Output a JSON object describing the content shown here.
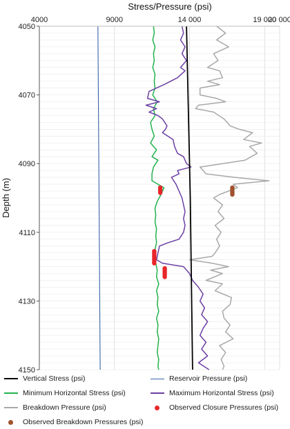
{
  "chart_data": {
    "type": "line",
    "title": "Stress/Pressure (psi)",
    "xlabel": "Stress/Pressure (psi)",
    "ylabel": "Depth (m)",
    "xlim": [
      4000,
      20000
    ],
    "ylim": [
      4150,
      4050
    ],
    "x_ticks": [
      "4000",
      "9000",
      "14 000",
      "19 000",
      "20 000"
    ],
    "y_ticks": [
      "4050",
      "4070",
      "4090",
      "4110",
      "4130",
      "4150"
    ],
    "grid": true,
    "legend_position": "bottom",
    "series": [
      {
        "name": "Vertical Stress (psi)",
        "color": "#000000",
        "style": "line",
        "points": [
          [
            13800,
            4050
          ],
          [
            14050,
            4100
          ],
          [
            14200,
            4150
          ]
        ]
      },
      {
        "name": "Reservoir Pressure (psi)",
        "color": "#3a62a6",
        "style": "line",
        "points": [
          [
            7900,
            4050
          ],
          [
            8050,
            4150
          ]
        ]
      },
      {
        "name": "Minimum Horizontal Stress (psi)",
        "color": "#22b24c",
        "style": "line",
        "points": [
          [
            11600,
            4050
          ],
          [
            11650,
            4052
          ],
          [
            11550,
            4054
          ],
          [
            11700,
            4056
          ],
          [
            11600,
            4058
          ],
          [
            11650,
            4060
          ],
          [
            11550,
            4062
          ],
          [
            11700,
            4064
          ],
          [
            11650,
            4066
          ],
          [
            11700,
            4068
          ],
          [
            11550,
            4070
          ],
          [
            11850,
            4072
          ],
          [
            11600,
            4074
          ],
          [
            11700,
            4076
          ],
          [
            11400,
            4078
          ],
          [
            11500,
            4080
          ],
          [
            11650,
            4082
          ],
          [
            11400,
            4084
          ],
          [
            11800,
            4086
          ],
          [
            11500,
            4088
          ],
          [
            11900,
            4089
          ],
          [
            11600,
            4091
          ],
          [
            11500,
            4093
          ],
          [
            11500,
            4095
          ],
          [
            12300,
            4097
          ],
          [
            12100,
            4099
          ],
          [
            11850,
            4101
          ],
          [
            11700,
            4103
          ],
          [
            11750,
            4105
          ],
          [
            11700,
            4107
          ],
          [
            11800,
            4109
          ],
          [
            11750,
            4111
          ],
          [
            11800,
            4113
          ],
          [
            11700,
            4115
          ],
          [
            11600,
            4117
          ],
          [
            11750,
            4119
          ],
          [
            11850,
            4121
          ],
          [
            11800,
            4123
          ],
          [
            11950,
            4125
          ],
          [
            11800,
            4127
          ],
          [
            11900,
            4129
          ],
          [
            11850,
            4131
          ],
          [
            11950,
            4133
          ],
          [
            11800,
            4135
          ],
          [
            11900,
            4137
          ],
          [
            11850,
            4139
          ],
          [
            11950,
            4141
          ],
          [
            11900,
            4143
          ],
          [
            11850,
            4145
          ],
          [
            11950,
            4147
          ],
          [
            11900,
            4149
          ],
          [
            11950,
            4150
          ]
        ]
      },
      {
        "name": "Maximum Horizontal Stress (psi)",
        "color": "#6b3fa3",
        "style": "line",
        "points": [
          [
            13500,
            4050
          ],
          [
            13600,
            4052
          ],
          [
            13400,
            4054
          ],
          [
            13700,
            4056
          ],
          [
            13500,
            4058
          ],
          [
            13800,
            4060
          ],
          [
            13400,
            4062
          ],
          [
            13700,
            4063
          ],
          [
            13200,
            4065
          ],
          [
            12300,
            4067
          ],
          [
            11800,
            4068
          ],
          [
            11300,
            4069
          ],
          [
            11200,
            4071
          ],
          [
            12000,
            4072
          ],
          [
            11100,
            4073
          ],
          [
            11800,
            4074
          ],
          [
            11300,
            4075
          ],
          [
            11900,
            4076
          ],
          [
            12200,
            4077
          ],
          [
            12500,
            4079
          ],
          [
            12400,
            4080
          ],
          [
            12200,
            4081
          ],
          [
            12900,
            4083
          ],
          [
            13000,
            4085
          ],
          [
            13200,
            4087
          ],
          [
            13600,
            4088
          ],
          [
            13800,
            4090
          ],
          [
            14100,
            4091
          ],
          [
            13200,
            4092
          ],
          [
            13300,
            4093
          ],
          [
            12800,
            4094
          ],
          [
            13100,
            4096
          ],
          [
            13300,
            4098
          ],
          [
            13500,
            4100
          ],
          [
            13600,
            4102
          ],
          [
            13700,
            4104
          ],
          [
            13600,
            4106
          ],
          [
            13700,
            4108
          ],
          [
            13600,
            4110
          ],
          [
            13300,
            4112
          ],
          [
            12600,
            4113
          ],
          [
            12000,
            4114
          ],
          [
            11900,
            4116
          ],
          [
            11800,
            4118
          ],
          [
            12200,
            4119
          ],
          [
            13600,
            4120
          ],
          [
            14000,
            4122
          ],
          [
            14200,
            4124
          ],
          [
            14600,
            4126
          ],
          [
            14900,
            4128
          ],
          [
            14700,
            4130
          ],
          [
            15000,
            4132
          ],
          [
            14800,
            4134
          ],
          [
            15200,
            4136
          ],
          [
            14900,
            4138
          ],
          [
            14700,
            4140
          ],
          [
            15100,
            4142
          ],
          [
            14800,
            4144
          ],
          [
            15200,
            4146
          ],
          [
            14600,
            4148
          ],
          [
            15300,
            4150
          ]
        ]
      },
      {
        "name": "Breakdown Pressure (psi)",
        "color": "#a8a8a8",
        "style": "line",
        "points": [
          [
            15800,
            4050
          ],
          [
            16400,
            4052
          ],
          [
            15800,
            4054
          ],
          [
            16600,
            4056
          ],
          [
            15600,
            4058
          ],
          [
            15900,
            4060
          ],
          [
            15200,
            4062
          ],
          [
            16000,
            4063
          ],
          [
            16200,
            4065
          ],
          [
            15200,
            4066
          ],
          [
            16000,
            4067
          ],
          [
            14700,
            4068
          ],
          [
            14700,
            4070
          ],
          [
            15800,
            4071
          ],
          [
            16400,
            4072
          ],
          [
            14600,
            4073
          ],
          [
            14400,
            4074
          ],
          [
            15600,
            4075
          ],
          [
            16300,
            4077
          ],
          [
            16700,
            4079
          ],
          [
            17300,
            4080
          ],
          [
            18200,
            4081
          ],
          [
            17600,
            4083
          ],
          [
            18800,
            4084
          ],
          [
            18000,
            4085
          ],
          [
            18500,
            4087
          ],
          [
            17700,
            4089
          ],
          [
            14700,
            4091
          ],
          [
            15100,
            4093
          ],
          [
            17000,
            4094
          ],
          [
            19300,
            4095
          ],
          [
            16900,
            4096
          ],
          [
            17200,
            4097
          ],
          [
            16000,
            4099
          ],
          [
            15600,
            4100
          ],
          [
            16200,
            4102
          ],
          [
            15900,
            4104
          ],
          [
            16300,
            4106
          ],
          [
            15700,
            4108
          ],
          [
            16100,
            4110
          ],
          [
            15800,
            4112
          ],
          [
            16000,
            4114
          ],
          [
            15700,
            4116
          ],
          [
            15500,
            4117
          ],
          [
            14000,
            4118
          ],
          [
            15500,
            4119
          ],
          [
            16600,
            4120
          ],
          [
            15400,
            4121
          ],
          [
            16200,
            4122
          ],
          [
            15100,
            4124
          ],
          [
            16200,
            4125
          ],
          [
            15700,
            4127
          ],
          [
            16800,
            4129
          ],
          [
            16700,
            4131
          ],
          [
            16200,
            4133
          ],
          [
            16300,
            4135
          ],
          [
            16700,
            4137
          ],
          [
            16400,
            4139
          ],
          [
            16900,
            4141
          ],
          [
            16000,
            4143
          ],
          [
            16400,
            4145
          ],
          [
            16100,
            4147
          ],
          [
            16300,
            4149
          ],
          [
            16200,
            4150
          ]
        ]
      },
      {
        "name": "Observed Closure Pressures (psi)",
        "color": "#e8262a",
        "style": "points",
        "points": [
          [
            12050,
            4097.0
          ],
          [
            12050,
            4097.5
          ],
          [
            12050,
            4098.0
          ],
          [
            12050,
            4098.5
          ],
          [
            11650,
            4115.5
          ],
          [
            11650,
            4116.0
          ],
          [
            11650,
            4116.5
          ],
          [
            11650,
            4117.0
          ],
          [
            11650,
            4117.5
          ],
          [
            11650,
            4118.0
          ],
          [
            11650,
            4118.5
          ],
          [
            11650,
            4119.0
          ],
          [
            12350,
            4120.5
          ],
          [
            12350,
            4121.0
          ],
          [
            12350,
            4121.5
          ],
          [
            12350,
            4122.0
          ],
          [
            12350,
            4122.5
          ],
          [
            12350,
            4123.0
          ]
        ]
      },
      {
        "name": "Observed Breakdown Pressures (psi)",
        "color": "#a0522d",
        "style": "points",
        "points": [
          [
            16850,
            4097.0
          ],
          [
            16850,
            4097.5
          ],
          [
            16850,
            4098.0
          ],
          [
            16850,
            4098.5
          ],
          [
            16850,
            4099.0
          ]
        ]
      }
    ]
  },
  "legend": [
    {
      "label": "Vertical Stress (psi)",
      "kind": "line",
      "color": "#000000",
      "icon": "black-line-icon"
    },
    {
      "label": "Reservoir Pressure (psi)",
      "kind": "line",
      "color": "#3a62a6",
      "icon": "blue-line-icon"
    },
    {
      "label": "Minimum Horizontal Stress (psi)",
      "kind": "line",
      "color": "#22b24c",
      "icon": "green-line-icon"
    },
    {
      "label": "Maximum Horizontal Stress (psi)",
      "kind": "line",
      "color": "#6b3fa3",
      "icon": "purple-line-icon"
    },
    {
      "label": "Breakdown Pressure (psi)",
      "kind": "line",
      "color": "#a8a8a8",
      "icon": "gray-line-icon"
    },
    {
      "label": "Observed Closure Pressures (psi)",
      "kind": "dot",
      "color": "#e8262a",
      "icon": "red-dot-icon"
    },
    {
      "label": "Observed Breakdown Pressures (psi)",
      "kind": "dot",
      "color": "#a0522d",
      "icon": "brown-dot-icon"
    }
  ]
}
